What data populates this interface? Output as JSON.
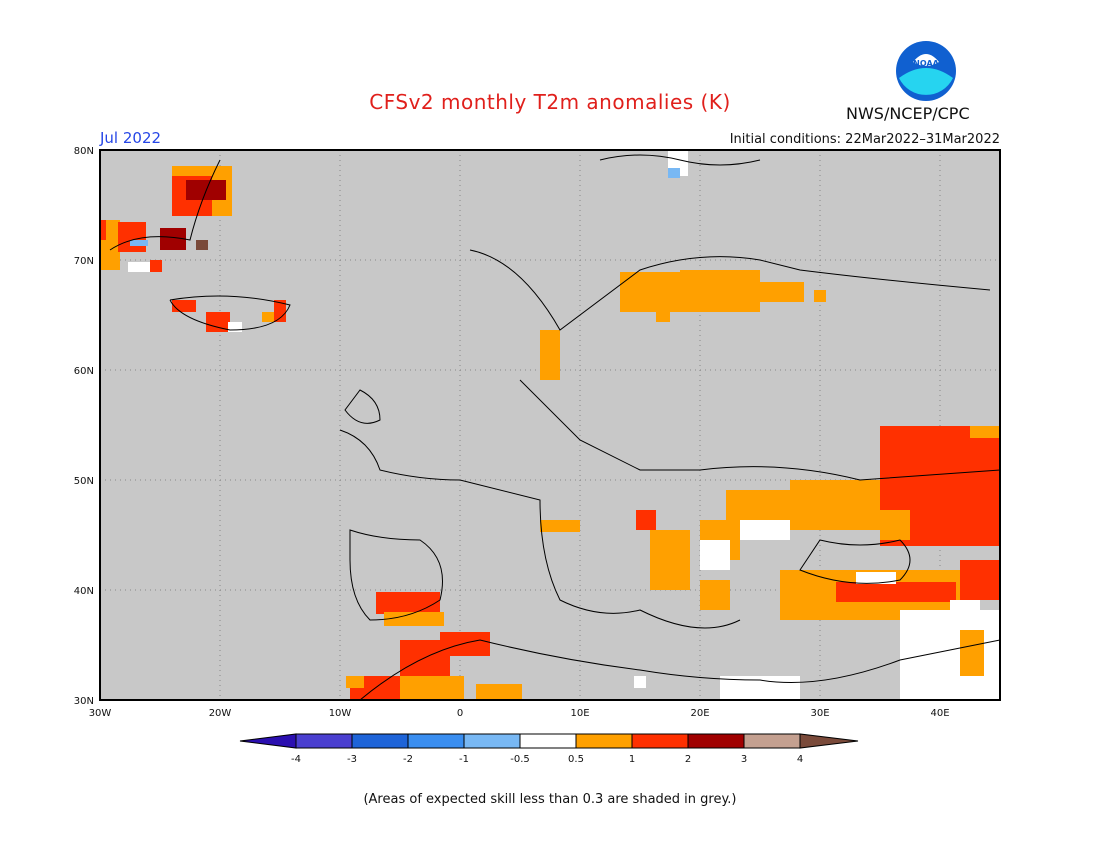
{
  "header": {
    "title": "CFSv2 monthly T2m anomalies (K)",
    "agency": "NWS/NCEP/CPC",
    "logo_text": "NOAA",
    "month": "Jul 2022",
    "initial_conditions": "Initial conditions: 22Mar2022–31Mar2022"
  },
  "map": {
    "extent": {
      "lon": [
        -30,
        45
      ],
      "lat": [
        30,
        80
      ]
    },
    "lat_ticks": [
      "80N",
      "70N",
      "60N",
      "50N",
      "40N",
      "30N"
    ],
    "lon_ticks": [
      "30W",
      "20W",
      "10W",
      "0",
      "10E",
      "20E",
      "30E",
      "40E"
    ],
    "ocean_color": "#c8c8c8"
  },
  "colorbar": {
    "labels": [
      "-4",
      "-3",
      "-2",
      "-1",
      "-0.5",
      "0.5",
      "1",
      "2",
      "3",
      "4"
    ],
    "colors": [
      "#2b0fb0",
      "#4a3fd0",
      "#1e64d8",
      "#3a8ef0",
      "#78b8f4",
      "#ffffff",
      "#ffa000",
      "#ff3000",
      "#a00000",
      "#c4a090",
      "#7a4a3a"
    ]
  },
  "footnote": "(Areas of expected skill less than 0.3 are shaded in grey.)"
}
